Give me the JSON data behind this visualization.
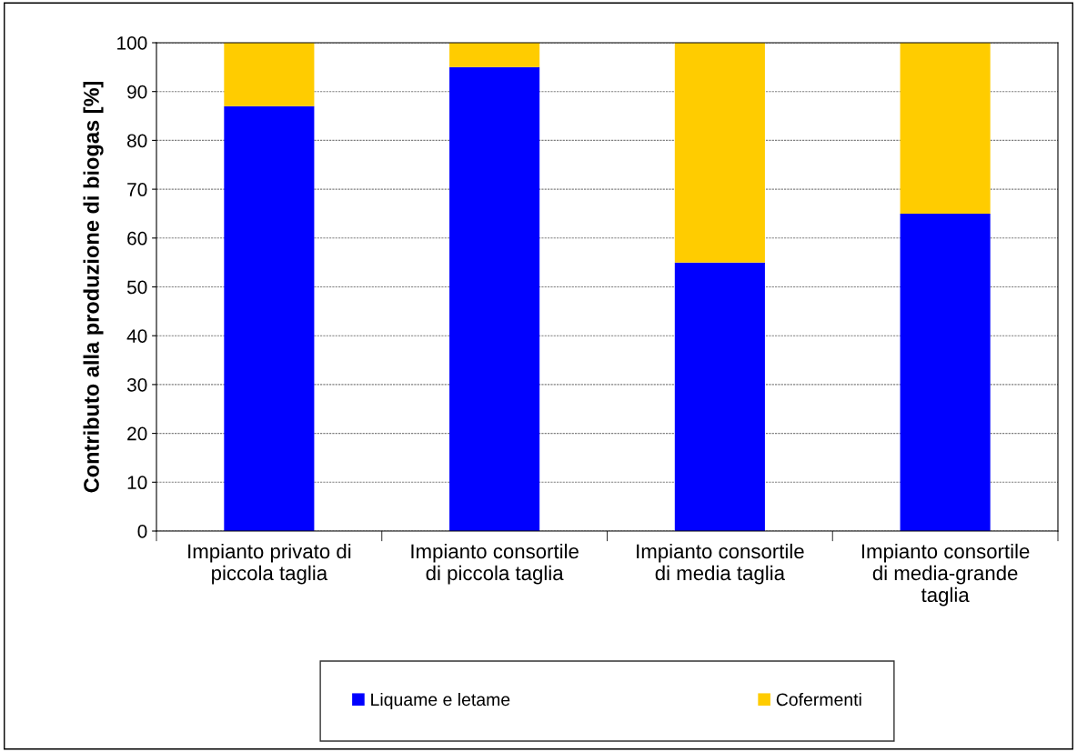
{
  "chart_data": {
    "type": "bar",
    "stacked": true,
    "ylabel": "Contributo alla produzione di biogas [%]",
    "categories": [
      "Impianto privato di\npiccola taglia",
      "Impianto consortile\ndi piccola taglia",
      "Impianto consortile\ndi media taglia",
      "Impianto consortile\ndi media-grande\ntaglia"
    ],
    "series": [
      {
        "name": "Liquame e letame",
        "color": "#0000ff",
        "values": [
          87,
          95,
          55,
          65
        ]
      },
      {
        "name": "Cofermenti",
        "color": "#ffcc00",
        "values": [
          13,
          5,
          45,
          35
        ]
      }
    ],
    "ylim": [
      0,
      100
    ],
    "yticks": [
      0,
      10,
      20,
      30,
      40,
      50,
      60,
      70,
      80,
      90,
      100
    ],
    "grid": "y",
    "legend": "bottom"
  }
}
